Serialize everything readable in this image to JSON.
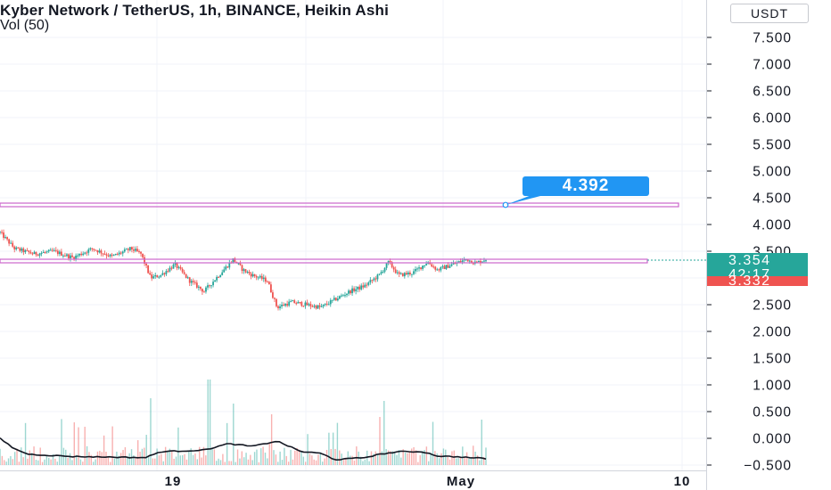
{
  "header": {
    "title": "Kyber Network / TetherUS, 1h, BINANCE, Heikin Ashi",
    "volume_label": "Vol (50)"
  },
  "price_scale": {
    "unit": "USDT",
    "ticks": [
      "7.500",
      "7.000",
      "6.500",
      "6.000",
      "5.500",
      "5.000",
      "4.500",
      "4.000",
      "3.500",
      "2.500",
      "2.000",
      "1.500",
      "1.000",
      "0.500",
      "0.000",
      "−0.500"
    ]
  },
  "time_scale": {
    "ticks": [
      "19",
      "May",
      "10"
    ]
  },
  "badges": {
    "last_price": "3.354",
    "countdown": "42:17",
    "prev_price": "3.332"
  },
  "callout": {
    "value": "4.392"
  },
  "colors": {
    "up": "#26a69a",
    "down": "#ef5350",
    "line_drawing": "#cc66cc",
    "callout": "#2196f3",
    "grid": "#f0f3fa"
  },
  "chart_data": {
    "type": "candlestick",
    "title": "Kyber Network / TetherUS, 1h, BINANCE, Heikin Ashi",
    "y_axis": {
      "min": -0.5,
      "max": 7.5,
      "unit": "USDT"
    },
    "horizontal_lines": [
      {
        "price": 4.39,
        "label": "4.392"
      },
      {
        "price": 3.35
      }
    ],
    "last_price": 3.354,
    "price_path": [
      {
        "t": 0,
        "p": 3.85
      },
      {
        "t": 0.03,
        "p": 3.55
      },
      {
        "t": 0.07,
        "p": 3.45
      },
      {
        "t": 0.11,
        "p": 3.5
      },
      {
        "t": 0.15,
        "p": 3.38
      },
      {
        "t": 0.19,
        "p": 3.55
      },
      {
        "t": 0.23,
        "p": 3.4
      },
      {
        "t": 0.27,
        "p": 3.55
      },
      {
        "t": 0.29,
        "p": 3.45
      },
      {
        "t": 0.31,
        "p": 3.0
      },
      {
        "t": 0.33,
        "p": 3.05
      },
      {
        "t": 0.36,
        "p": 3.25
      },
      {
        "t": 0.39,
        "p": 2.95
      },
      {
        "t": 0.42,
        "p": 2.75
      },
      {
        "t": 0.45,
        "p": 3.05
      },
      {
        "t": 0.48,
        "p": 3.35
      },
      {
        "t": 0.5,
        "p": 3.15
      },
      {
        "t": 0.52,
        "p": 3.05
      },
      {
        "t": 0.55,
        "p": 2.95
      },
      {
        "t": 0.57,
        "p": 2.45
      },
      {
        "t": 0.6,
        "p": 2.55
      },
      {
        "t": 0.63,
        "p": 2.5
      },
      {
        "t": 0.66,
        "p": 2.45
      },
      {
        "t": 0.69,
        "p": 2.6
      },
      {
        "t": 0.72,
        "p": 2.75
      },
      {
        "t": 0.75,
        "p": 2.85
      },
      {
        "t": 0.78,
        "p": 3.05
      },
      {
        "t": 0.8,
        "p": 3.3
      },
      {
        "t": 0.82,
        "p": 3.05
      },
      {
        "t": 0.85,
        "p": 3.1
      },
      {
        "t": 0.88,
        "p": 3.3
      },
      {
        "t": 0.9,
        "p": 3.15
      },
      {
        "t": 0.93,
        "p": 3.25
      },
      {
        "t": 0.96,
        "p": 3.35
      },
      {
        "t": 0.98,
        "p": 3.28
      },
      {
        "t": 1.0,
        "p": 3.354
      }
    ],
    "volume_spikes": [
      {
        "t": 0.31,
        "v": 0.75
      },
      {
        "t": 0.43,
        "v": 1.1
      },
      {
        "t": 0.48,
        "v": 0.65
      },
      {
        "t": 0.56,
        "v": 0.45
      },
      {
        "t": 0.78,
        "v": 0.4
      },
      {
        "t": 0.79,
        "v": 0.7
      },
      {
        "t": 0.99,
        "v": 0.35
      }
    ],
    "volume_ma": [
      {
        "t": 0,
        "v": 0.0
      },
      {
        "t": 0.03,
        "v": -0.2
      },
      {
        "t": 0.06,
        "v": -0.3
      },
      {
        "t": 0.15,
        "v": -0.34
      },
      {
        "t": 0.3,
        "v": -0.36
      },
      {
        "t": 0.33,
        "v": -0.25
      },
      {
        "t": 0.42,
        "v": -0.22
      },
      {
        "t": 0.47,
        "v": -0.1
      },
      {
        "t": 0.52,
        "v": -0.15
      },
      {
        "t": 0.57,
        "v": -0.05
      },
      {
        "t": 0.62,
        "v": -0.25
      },
      {
        "t": 0.66,
        "v": -0.28
      },
      {
        "t": 0.69,
        "v": -0.4
      },
      {
        "t": 0.75,
        "v": -0.36
      },
      {
        "t": 0.78,
        "v": -0.3
      },
      {
        "t": 0.82,
        "v": -0.25
      },
      {
        "t": 0.87,
        "v": -0.25
      },
      {
        "t": 0.9,
        "v": -0.33
      },
      {
        "t": 0.95,
        "v": -0.35
      },
      {
        "t": 1.0,
        "v": -0.38
      }
    ]
  }
}
